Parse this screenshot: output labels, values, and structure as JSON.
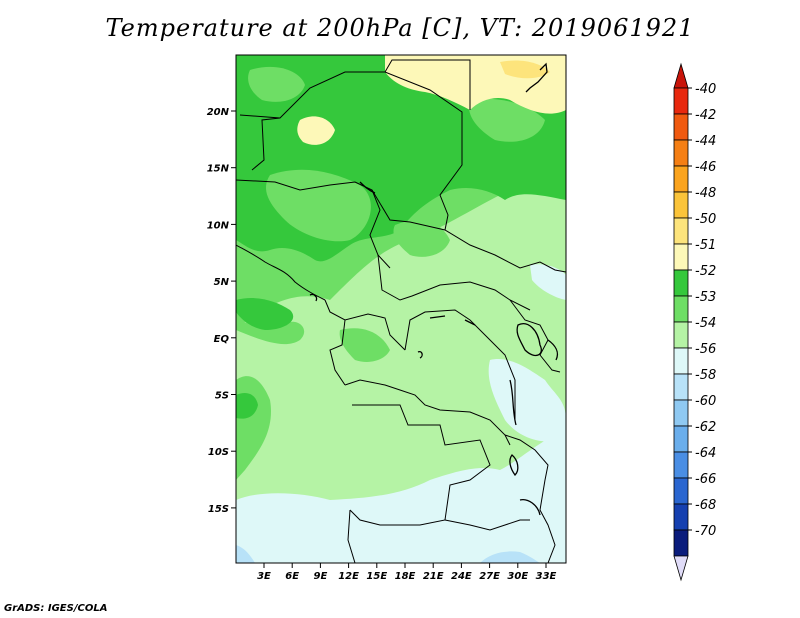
{
  "title": "Temperature at 200hPa [C], VT: 2019061921",
  "credit": "GrADS: IGES/COLA",
  "map": {
    "lat_labels": [
      "20N",
      "15N",
      "10N",
      "5N",
      "EQ",
      "5S",
      "10S",
      "15S"
    ],
    "lon_labels": [
      "3E",
      "6E",
      "9E",
      "12E",
      "15E",
      "18E",
      "21E",
      "24E",
      "27E",
      "30E",
      "33E"
    ]
  },
  "colorbar": {
    "labels": [
      "-40",
      "-42",
      "-44",
      "-46",
      "-48",
      "-50",
      "-51",
      "-52",
      "-53",
      "-54",
      "-56",
      "-58",
      "-60",
      "-62",
      "-64",
      "-66",
      "-68",
      "-70"
    ],
    "colors": [
      "#e8280e",
      "#f05a10",
      "#f57f14",
      "#fba41e",
      "#fbc43a",
      "#fde47c",
      "#fdf8b8",
      "#35c83c",
      "#6ede65",
      "#b5f3a5",
      "#def8f8",
      "#b8e2f8",
      "#8fc9f2",
      "#6aaeec",
      "#4a8ee4",
      "#2a66d0",
      "#1540b0",
      "#0a1c7c"
    ],
    "top_arrow_color": "#c8140a",
    "bottom_arrow_color": "#e0dcf8"
  }
}
